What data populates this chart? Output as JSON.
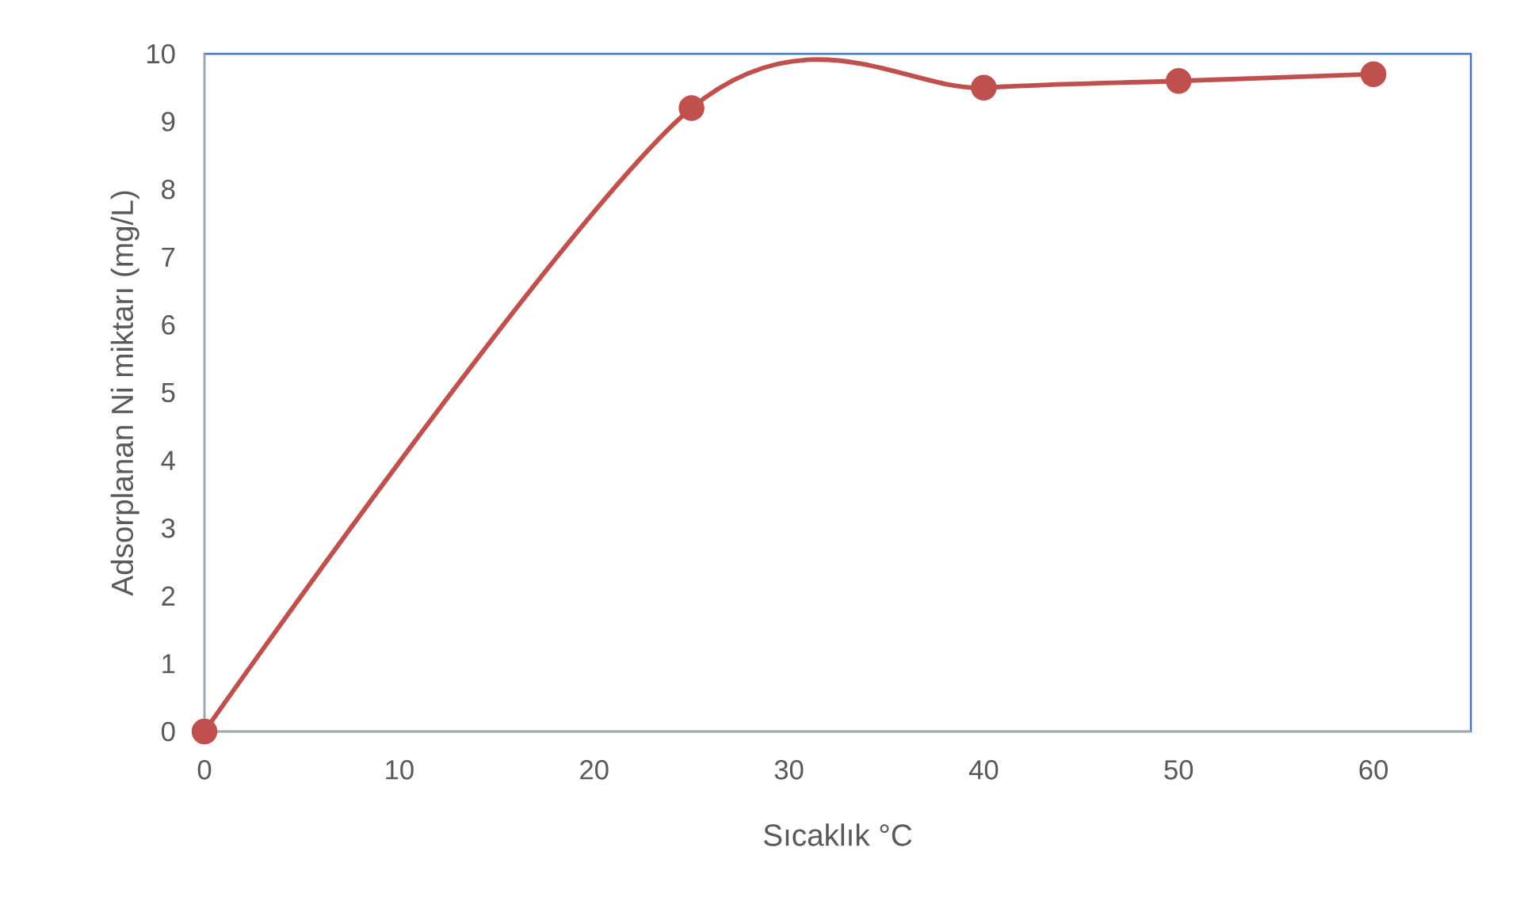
{
  "chart_data": {
    "type": "line",
    "xlabel": "Sıcaklık °C",
    "ylabel": "Adsorplanan Ni miktarı (mg/L)",
    "x": [
      0,
      25,
      40,
      50,
      60
    ],
    "series": [
      {
        "color": "#c0504d",
        "values": [
          0,
          9.2,
          9.5,
          9.6,
          9.7
        ]
      }
    ],
    "xlim": [
      0,
      65
    ],
    "ylim": [
      0,
      10
    ],
    "xticks": [
      0,
      10,
      20,
      30,
      40,
      50,
      60
    ],
    "yticks": [
      0,
      1,
      2,
      3,
      4,
      5,
      6,
      7,
      8,
      9,
      10
    ],
    "marker": "circle",
    "line_style": "solid"
  }
}
